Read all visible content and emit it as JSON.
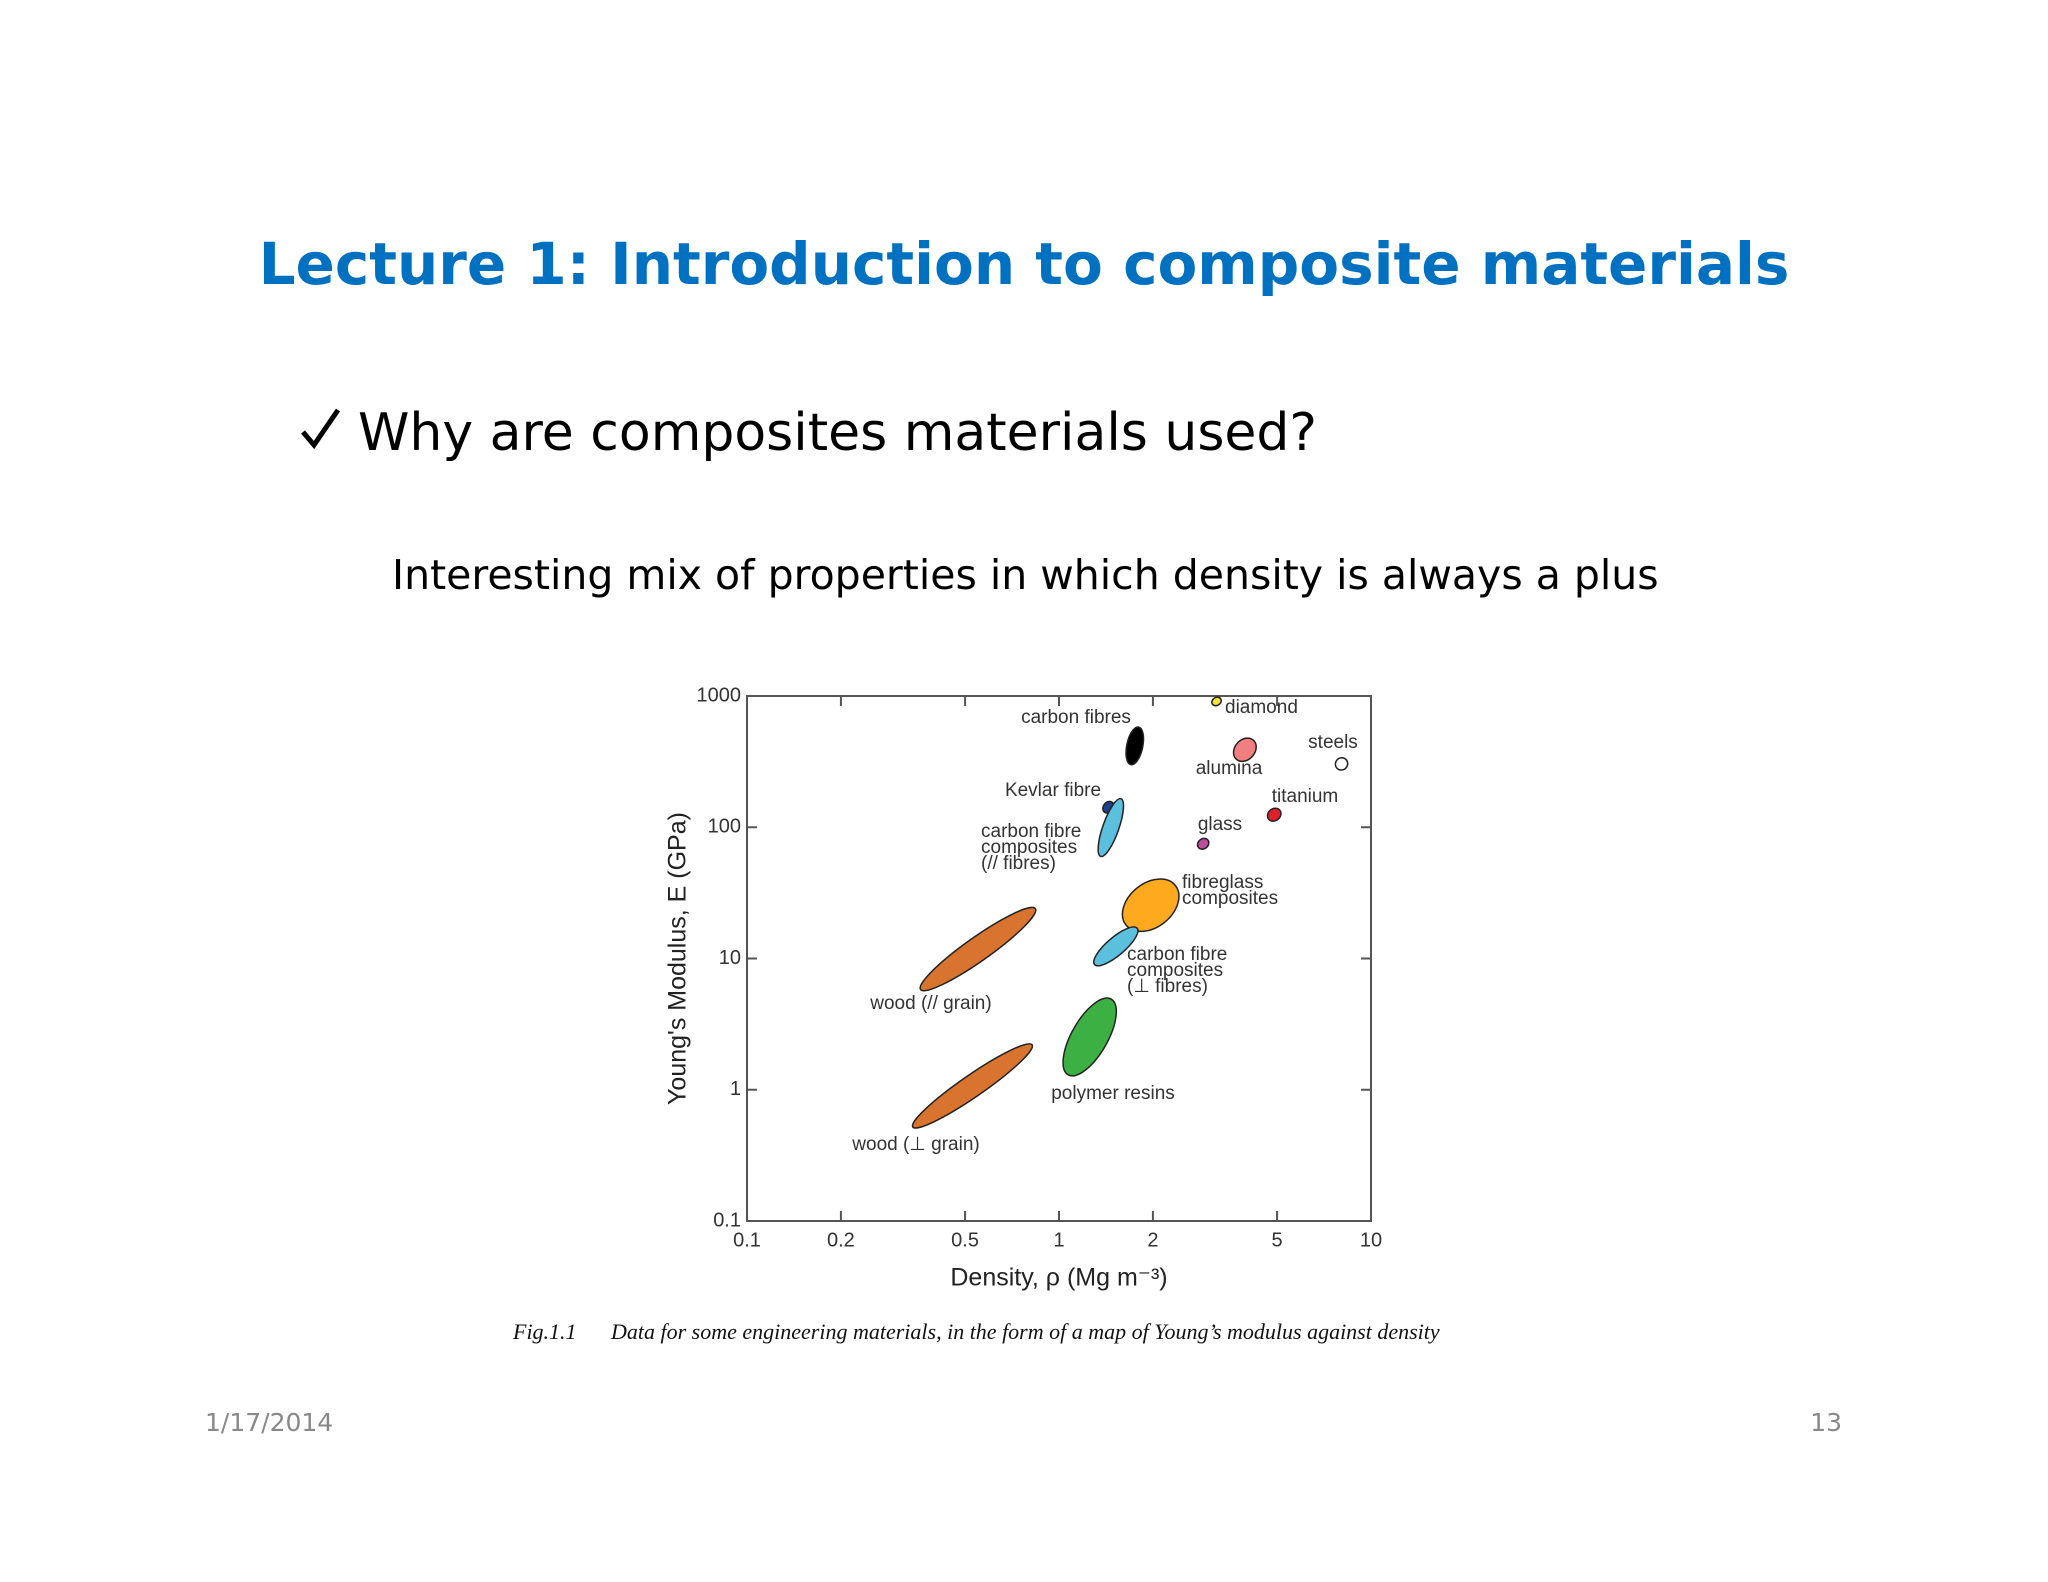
{
  "slide": {
    "title": "Lecture 1: Introduction to composite materials",
    "bullet": "Why are composites materials used?",
    "subtitle": "Interesting mix of properties in which density is always a plus",
    "date": "1/17/2014",
    "page_number": 13
  },
  "figure": {
    "caption_label": "Fig.1.1",
    "caption": "Data for some engineering materials, in the form of a map of Young’s modulus against density"
  },
  "chart_data": {
    "type": "property-map",
    "xlabel": "Density, ρ (Mg m⁻³)",
    "ylabel": "Young's Modulus, E (GPa)",
    "xscale": "log",
    "yscale": "log",
    "xlim": [
      0.1,
      10
    ],
    "ylim": [
      0.1,
      1000
    ],
    "xticks": [
      0.1,
      0.2,
      0.5,
      1,
      2,
      5,
      10
    ],
    "yticks": [
      0.1,
      1,
      10,
      100,
      1000
    ],
    "regions": [
      {
        "label": [
          "carbon fibres"
        ],
        "color": "#000000",
        "density": [
          1.7,
          1.8
        ],
        "modulus": [
          300,
          580
        ]
      },
      {
        "label": [
          "diamond"
        ],
        "color": "#f2e23a",
        "density": [
          3.1,
          3.3
        ],
        "modulus": [
          870,
          950
        ]
      },
      {
        "label": [
          "alumina"
        ],
        "color": "#f08080",
        "density": [
          3.7,
          4.2
        ],
        "modulus": [
          330,
          460
        ]
      },
      {
        "label": [
          "steels"
        ],
        "color": "#ffffff",
        "density": [
          7.8,
          8.3
        ],
        "modulus": [
          280,
          330
        ]
      },
      {
        "label": [
          "titanium"
        ],
        "color": "#e0202a",
        "density": [
          4.7,
          5.1
        ],
        "modulus": [
          115,
          135
        ]
      },
      {
        "label": [
          "glass"
        ],
        "color": "#c04ca0",
        "density": [
          2.8,
          3.0
        ],
        "modulus": [
          70,
          80
        ]
      },
      {
        "label": [
          "Kevlar fibre"
        ],
        "color": "#1f3f8f",
        "density": [
          1.4,
          1.48
        ],
        "modulus": [
          130,
          155
        ]
      },
      {
        "label": [
          "carbon fibre",
          "composites",
          "(// fibres)"
        ],
        "color": "#5bc0de",
        "density": [
          1.36,
          1.58
        ],
        "modulus": [
          60,
          165
        ]
      },
      {
        "label": [
          "fibreglass",
          "composites"
        ],
        "color": "#ffa91f",
        "density": [
          1.64,
          2.36
        ],
        "modulus": [
          18,
          36
        ]
      },
      {
        "label": [
          "carbon fibre",
          "composites",
          "(⊥ fibres)"
        ],
        "color": "#5bc0de",
        "density": [
          1.3,
          1.78
        ],
        "modulus": [
          9,
          17
        ]
      },
      {
        "label": [
          "wood (// grain)"
        ],
        "color": "#d8742f",
        "density": [
          0.36,
          0.84
        ],
        "modulus": [
          5.8,
          24
        ]
      },
      {
        "label": [
          "wood (⊥ grain)"
        ],
        "color": "#d8742f",
        "density": [
          0.34,
          0.82
        ],
        "modulus": [
          0.52,
          2.2
        ]
      },
      {
        "label": [
          "polymer resins"
        ],
        "color": "#3cb043",
        "density": [
          1.07,
          1.47
        ],
        "modulus": [
          1.3,
          4.9
        ]
      }
    ]
  }
}
